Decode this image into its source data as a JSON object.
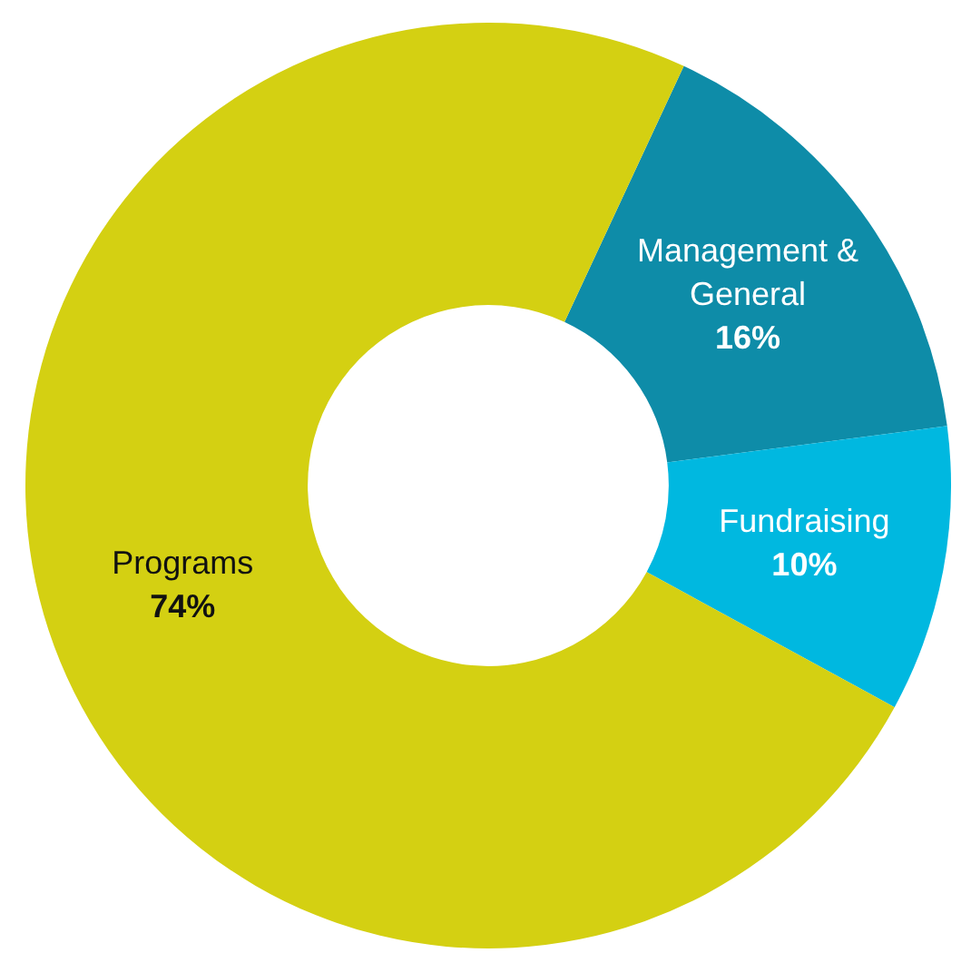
{
  "chart_data": {
    "type": "donut",
    "categories": [
      "Management & General",
      "Fundraising",
      "Programs"
    ],
    "values": [
      16,
      10,
      74
    ],
    "colors": [
      "#0e8ca8",
      "#00b8e0",
      "#d4d012"
    ],
    "value_labels": [
      "16%",
      "10%",
      "74%"
    ],
    "legend": false
  }
}
